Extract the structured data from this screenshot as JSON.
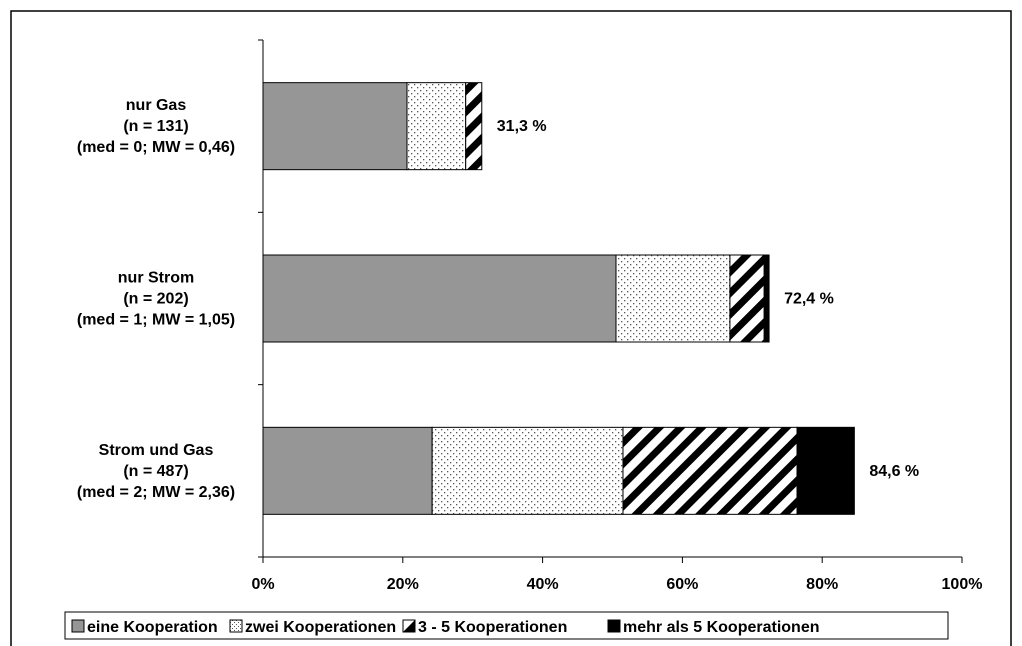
{
  "chart_data": {
    "type": "bar",
    "orientation": "horizontal",
    "stacked": true,
    "categories": [
      [
        "nur Gas",
        "(n = 131)",
        "(med = 0; MW = 0,46)"
      ],
      [
        "nur Strom",
        "(n = 202)",
        "(med = 1; MW = 1,05)"
      ],
      [
        "Strom und Gas",
        "(n = 487)",
        "(med = 2; MW = 2,36)"
      ]
    ],
    "series": [
      {
        "name": "eine Kooperation",
        "values": [
          20.6,
          50.5,
          24.2
        ],
        "color": "#969696",
        "pattern": "solid"
      },
      {
        "name": "zwei Kooperationen",
        "values": [
          8.4,
          16.3,
          27.3
        ],
        "color": "#ffffff",
        "pattern": "dots"
      },
      {
        "name": "3 - 5 Kooperationen",
        "values": [
          2.3,
          4.9,
          24.9
        ],
        "color": "#ffffff",
        "pattern": "diagonal-stripes"
      },
      {
        "name": "mehr als 5 Kooperationen",
        "values": [
          0.0,
          0.7,
          8.2
        ],
        "color": "#000000",
        "pattern": "solid"
      }
    ],
    "totals": [
      "31,3 %",
      "72,4 %",
      "84,6 %"
    ],
    "x_ticks": [
      "0%",
      "20%",
      "40%",
      "60%",
      "80%",
      "100%"
    ],
    "xlim": [
      0,
      100
    ],
    "grid": false,
    "legend_position": "bottom"
  }
}
